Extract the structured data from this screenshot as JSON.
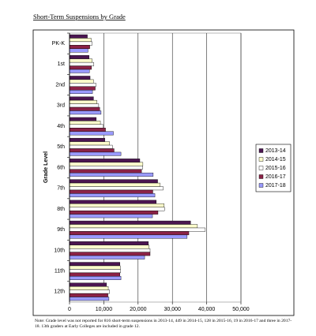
{
  "chart_data": {
    "type": "hbar",
    "title": "Short-Term Suspensions by Grade",
    "y_label": "Grade Level",
    "categories": [
      "PK-K",
      "1st",
      "2nd",
      "3rd",
      "4th",
      "5th",
      "6th",
      "7th",
      "8th",
      "9th",
      "10th",
      "11th",
      "12th"
    ],
    "series": [
      {
        "name": "2013-14",
        "color": "#4b1650",
        "values": [
          5200,
          5700,
          6000,
          7000,
          7800,
          10300,
          20500,
          25700,
          25300,
          35300,
          23000,
          14700,
          10800
        ]
      },
      {
        "name": "2014-15",
        "color": "#ffffcc",
        "values": [
          6300,
          6600,
          7000,
          8000,
          9000,
          11700,
          21400,
          26400,
          27600,
          37300,
          23200,
          14800,
          11300
        ]
      },
      {
        "name": "2015-16",
        "color": "#ffffff",
        "values": [
          6600,
          7100,
          7700,
          8500,
          9800,
          12500,
          21300,
          27300,
          27700,
          39600,
          23500,
          14900,
          11700
        ]
      },
      {
        "name": "2016-17",
        "color": "#8b2246",
        "values": [
          5900,
          6400,
          7500,
          8800,
          10500,
          13000,
          21000,
          24300,
          25800,
          34800,
          23500,
          14700,
          11200
        ]
      },
      {
        "name": "2017-18",
        "color": "#9a9aff",
        "values": [
          5400,
          5800,
          6700,
          9200,
          12800,
          15000,
          24400,
          24900,
          24200,
          34300,
          21900,
          15000,
          11500
        ]
      }
    ],
    "xlim": [
      0,
      50000
    ],
    "xticks": [
      0,
      {
        "value": 10000,
        "label": "10,000"
      },
      {
        "value": 20000,
        "label": "20,000"
      },
      {
        "value": 30000,
        "label": "30,000"
      },
      {
        "value": 40000,
        "label": "40,000"
      },
      {
        "value": 50000,
        "label": "50,000"
      }
    ],
    "grid": true,
    "legend": "right",
    "note": "Note:  Grade level was not reported for 816 short-term suspensions in 2013-14, 449 in 2014-15, 128 in 2015-16, 19 in 2016-17 and three in 2017-18.  13th graders at Early Colleges are included in grade 12."
  }
}
